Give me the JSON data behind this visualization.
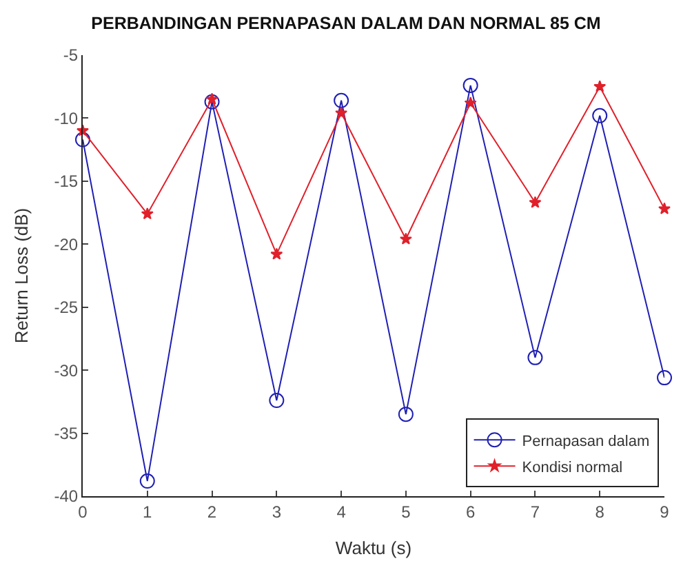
{
  "chart_data": {
    "type": "line",
    "title": "PERBANDINGAN PERNAPASAN DALAM DAN NORMAL 85 CM",
    "xlabel": "Waktu (s)",
    "ylabel": "Return Loss (dB)",
    "x": [
      0,
      1,
      2,
      3,
      4,
      5,
      6,
      7,
      8,
      9
    ],
    "series": [
      {
        "name": "Pernapasan dalam",
        "color": "#1f1fb4",
        "marker": "circle",
        "values": [
          -11.7,
          -38.8,
          -8.7,
          -32.4,
          -8.6,
          -33.5,
          -7.4,
          -29.0,
          -9.8,
          -30.6
        ]
      },
      {
        "name": "Kondisi normal",
        "color": "#e0202a",
        "marker": "star",
        "values": [
          -11.0,
          -17.6,
          -8.5,
          -20.8,
          -9.6,
          -19.6,
          -8.8,
          -16.7,
          -7.5,
          -17.2
        ]
      }
    ],
    "xlim": [
      0,
      9
    ],
    "xticks": [
      0,
      1,
      2,
      3,
      4,
      5,
      6,
      7,
      8,
      9
    ],
    "ylim": [
      -40,
      -5
    ],
    "yticks": [
      -40,
      -35,
      -30,
      -25,
      -20,
      -15,
      -10,
      -5
    ],
    "legend": "bottom right",
    "line_style": "solid"
  }
}
